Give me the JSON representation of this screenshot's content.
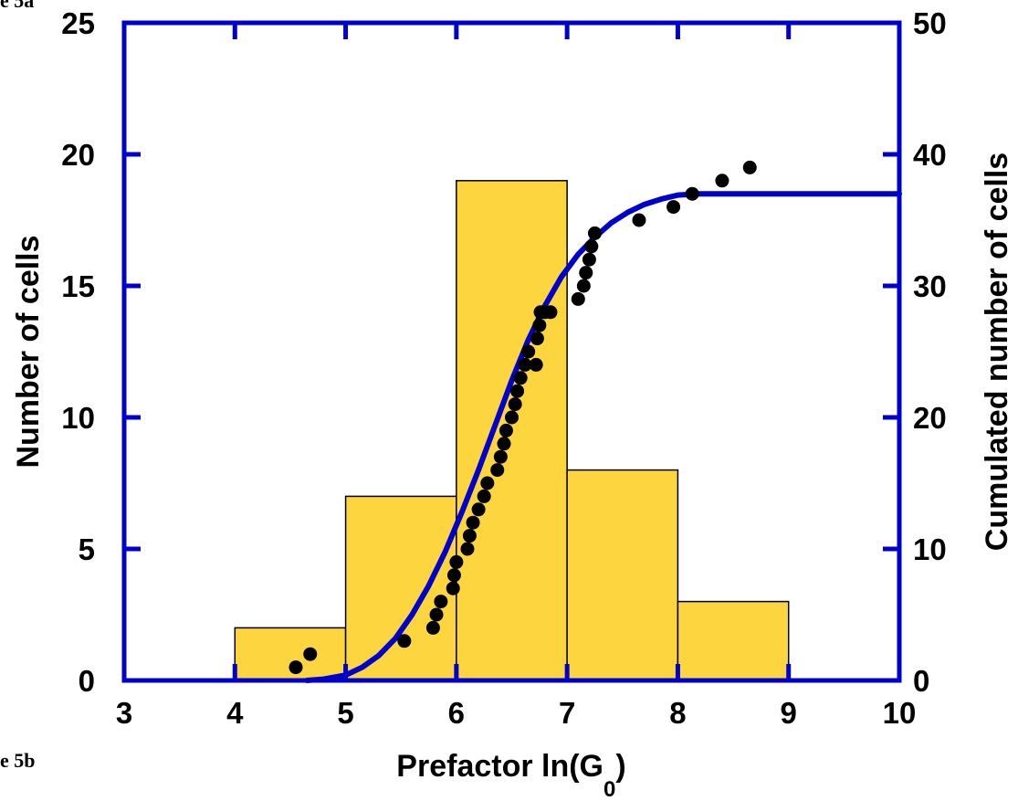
{
  "figure_labels": {
    "top": "e 5a",
    "bottom": "e 5b"
  },
  "chart_data": {
    "type": "bar",
    "xlabel_main": "Prefactor ln(G",
    "xlabel_sub": "0",
    "xlabel_close": ")",
    "ylabel": "Number of cells",
    "y2label": "Cumulated number of cells",
    "xlim": [
      3,
      10
    ],
    "ylim": [
      0,
      25
    ],
    "y2lim": [
      0,
      50
    ],
    "x_ticks": [
      "3",
      "4",
      "5",
      "6",
      "7",
      "8",
      "9",
      "10"
    ],
    "y_ticks": [
      "0",
      "5",
      "10",
      "15",
      "20",
      "25"
    ],
    "y2_ticks": [
      "0",
      "10",
      "20",
      "30",
      "40",
      "50"
    ],
    "histogram": {
      "bins": [
        [
          4,
          5
        ],
        [
          5,
          6
        ],
        [
          6,
          7
        ],
        [
          7,
          8
        ],
        [
          8,
          9
        ]
      ],
      "counts": [
        2,
        7,
        19,
        8,
        3
      ],
      "color": "#fdd53f"
    },
    "cumulative_points": {
      "axis": "right",
      "color": "#000000",
      "x": [
        4.55,
        4.68,
        5.53,
        5.79,
        5.82,
        5.86,
        5.97,
        5.98,
        6.0,
        6.1,
        6.12,
        6.15,
        6.2,
        6.25,
        6.28,
        6.37,
        6.4,
        6.43,
        6.45,
        6.5,
        6.53,
        6.55,
        6.58,
        6.62,
        6.65,
        6.72,
        6.73,
        6.75,
        6.76,
        6.8,
        6.85,
        7.1,
        7.15,
        7.17,
        7.2,
        7.22,
        7.25,
        7.65,
        7.96,
        8.13,
        8.4,
        8.65
      ],
      "y": [
        1,
        2,
        3,
        4,
        5,
        6,
        7,
        8,
        9,
        10,
        11,
        12,
        13,
        14,
        15,
        16,
        17,
        18,
        19,
        20,
        21,
        22,
        23,
        24,
        25,
        24,
        26,
        27,
        28,
        28,
        28,
        29,
        30,
        31,
        32,
        33,
        34,
        35,
        36,
        37,
        38,
        39
      ]
    },
    "fit_curve": {
      "axis": "right",
      "color": "#0000cc",
      "x": [
        4.65,
        4.8,
        5.0,
        5.15,
        5.3,
        5.45,
        5.6,
        5.75,
        5.9,
        6.05,
        6.2,
        6.35,
        6.5,
        6.65,
        6.8,
        6.95,
        7.1,
        7.25,
        7.4,
        7.55,
        7.7,
        7.85,
        8.0,
        8.2,
        8.5,
        10.0
      ],
      "y": [
        0,
        0.1,
        0.4,
        1.0,
        1.9,
        3.2,
        5.0,
        7.2,
        9.8,
        12.8,
        16.0,
        19.4,
        22.8,
        25.9,
        28.5,
        30.7,
        32.4,
        33.7,
        34.8,
        35.6,
        36.2,
        36.6,
        36.9,
        37.0,
        37.0,
        37.0
      ]
    },
    "frame_color": "#0000cc",
    "grid": false
  }
}
